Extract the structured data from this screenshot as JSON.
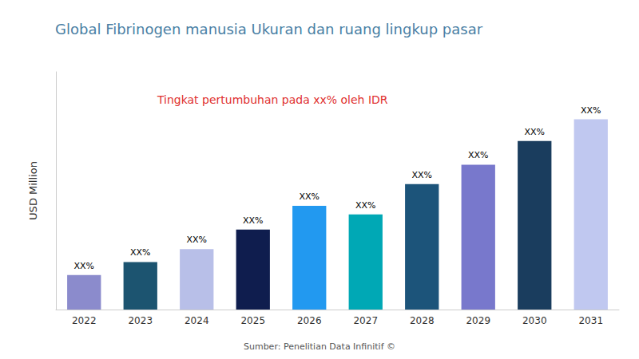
{
  "chart_data": {
    "type": "bar",
    "title": "Global Fibrinogen manusia Ukuran dan ruang lingkup pasar",
    "title_color": "#4a7fa5",
    "ylabel": "USD Million",
    "annotations": [
      {
        "text": "Tingkat pertumbuhan pada xx% oleh IDR",
        "color": "#e03030"
      },
      {
        "text": "Sumber: Penelitian Data Infinitif ©"
      }
    ],
    "categories": [
      "2022",
      "2023",
      "2024",
      "2025",
      "2026",
      "2027",
      "2028",
      "2029",
      "2030",
      "2031"
    ],
    "values": [
      16,
      22,
      28,
      37,
      48,
      44,
      58,
      67,
      78,
      88
    ],
    "colors": [
      "#8b8bcc",
      "#1c5470",
      "#b8bfe8",
      "#0f1d4e",
      "#2299f0",
      "#00a8b5",
      "#1c547a",
      "#7878cc",
      "#1a3d5e",
      "#c0c8f0"
    ],
    "data_labels": true,
    "value_labels": [
      "XX%",
      "XX%",
      "XX%",
      "XX%",
      "XX%",
      "XX%",
      "XX%",
      "XX%",
      "XX%",
      "XX%"
    ],
    "ylim": [
      0,
      110
    ],
    "grid": false,
    "tick_labels": "x"
  }
}
